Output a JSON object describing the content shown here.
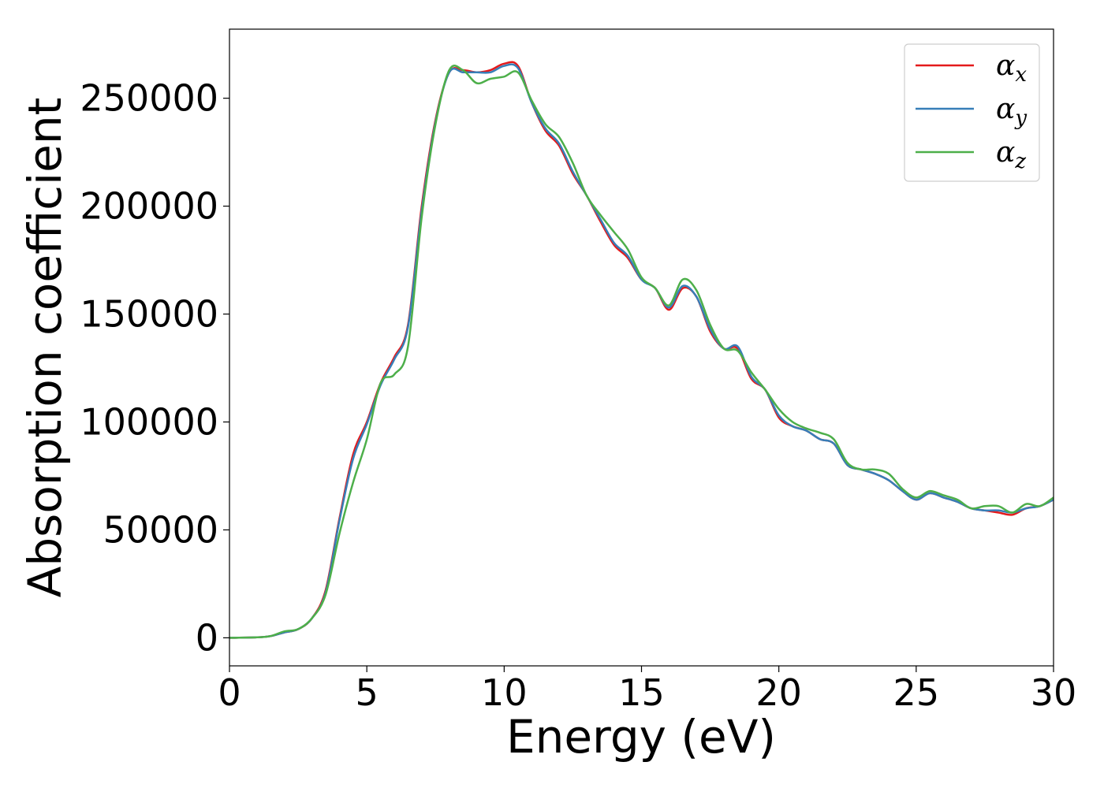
{
  "chart_data": {
    "type": "line",
    "title": "",
    "xlabel": "Energy (eV)",
    "ylabel": "Absorption coefficient",
    "xlim": [
      0,
      30
    ],
    "ylim": [
      -13000,
      282000
    ],
    "xticks": [
      0,
      5,
      10,
      15,
      20,
      25,
      30
    ],
    "yticks": [
      0,
      50000,
      100000,
      150000,
      200000,
      250000
    ],
    "grid": false,
    "legend_position": "top-right",
    "x": [
      0,
      1,
      1.5,
      2,
      2.5,
      3,
      3.5,
      4,
      4.5,
      5,
      5.5,
      6,
      6.5,
      7,
      7.5,
      8,
      8.5,
      9,
      9.5,
      10,
      10.5,
      11,
      11.5,
      12,
      12.5,
      13,
      13.5,
      14,
      14.5,
      15,
      15.5,
      16,
      16.5,
      17,
      17.5,
      18,
      18.5,
      19,
      19.5,
      20,
      20.5,
      21,
      21.5,
      22,
      22.5,
      23,
      23.5,
      24,
      24.5,
      25,
      25.5,
      26,
      26.5,
      27,
      27.5,
      28,
      28.5,
      29,
      29.5,
      30
    ],
    "series": [
      {
        "name": "α",
        "subscript": "x",
        "color": "#e41a1c",
        "values": [
          0,
          200,
          800,
          2500,
          4000,
          9000,
          22000,
          55000,
          85000,
          100000,
          118000,
          130000,
          145000,
          200000,
          240000,
          262000,
          263000,
          262000,
          263000,
          266000,
          265000,
          248000,
          235000,
          228000,
          215000,
          205000,
          193000,
          182000,
          176000,
          166000,
          162000,
          152000,
          162000,
          158000,
          142000,
          134000,
          134000,
          120000,
          115000,
          102000,
          98000,
          96000,
          92000,
          90000,
          80000,
          78000,
          76000,
          73000,
          68000,
          64000,
          67000,
          65000,
          63000,
          60000,
          59000,
          58000,
          57000,
          60000,
          61000,
          64000
        ]
      },
      {
        "name": "α",
        "subscript": "y",
        "color": "#377eb8",
        "values": [
          0,
          200,
          800,
          2500,
          4000,
          9000,
          21000,
          54000,
          83000,
          99000,
          117000,
          129000,
          144000,
          198000,
          239000,
          262000,
          262000,
          262000,
          262000,
          265000,
          264000,
          248000,
          236000,
          229000,
          216000,
          205000,
          194000,
          183000,
          177000,
          166000,
          162000,
          153000,
          163000,
          158000,
          143000,
          134000,
          135000,
          121000,
          115000,
          103000,
          98000,
          96000,
          92000,
          90000,
          80000,
          78000,
          76000,
          73000,
          68000,
          64000,
          67000,
          65000,
          63000,
          60000,
          59000,
          59000,
          58000,
          60000,
          61000,
          64000
        ]
      },
      {
        "name": "α",
        "subscript": "z",
        "color": "#4daf4a",
        "values": [
          0,
          200,
          800,
          3000,
          4000,
          9000,
          20000,
          48000,
          72000,
          92000,
          118000,
          122000,
          135000,
          195000,
          238000,
          263000,
          263000,
          257000,
          259000,
          260000,
          262000,
          249000,
          238000,
          232000,
          220000,
          205000,
          196000,
          188000,
          180000,
          167000,
          162000,
          154000,
          166000,
          161000,
          145000,
          134000,
          133000,
          123000,
          115000,
          106000,
          100000,
          97000,
          95000,
          92000,
          81000,
          78000,
          78000,
          76000,
          69000,
          65000,
          68000,
          66000,
          64000,
          60000,
          61000,
          61000,
          58000,
          62000,
          61000,
          65000
        ]
      }
    ]
  }
}
